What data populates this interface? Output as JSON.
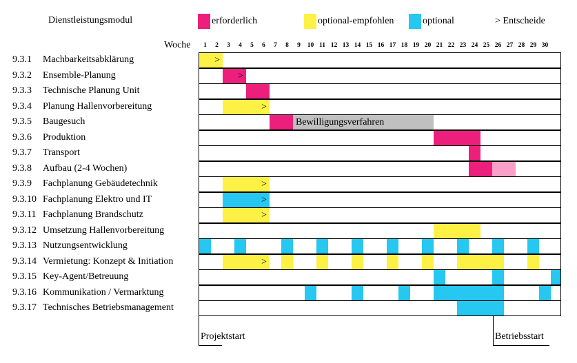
{
  "colors": {
    "required": "#ec1f7d",
    "recommended": "#fdf146",
    "optional": "#26c7f1",
    "permit": "#c0c0c0",
    "light_pink": "#f8a0c8"
  },
  "legend": {
    "title": "Dienstleistungsmodul",
    "required": "erforderlich",
    "recommended": "optional-empfohlen",
    "optional": "optional",
    "decision": "> Entscheide"
  },
  "axis": {
    "label": "Woche",
    "weeks": [
      "1",
      "2",
      "3",
      "4",
      "5",
      "6",
      "7",
      "8",
      "9",
      "10",
      "11",
      "12",
      "13",
      "14",
      "15",
      "16",
      "17",
      "18",
      "19",
      "20",
      "21",
      "22",
      "23",
      "24",
      "25",
      "26",
      "27",
      "28",
      "29",
      "30"
    ]
  },
  "tasks": [
    {
      "code": "9.3.1",
      "name": "Machbarkeitsabklärung"
    },
    {
      "code": "9.3.2",
      "name": "Ensemble-Planung"
    },
    {
      "code": "9.3.3",
      "name": "Technische Planung Unit"
    },
    {
      "code": "9.3.4",
      "name": "Planung Hallenvorbereitung"
    },
    {
      "code": "9.3.5",
      "name": "Baugesuch"
    },
    {
      "code": "9.3.6",
      "name": "Produktion"
    },
    {
      "code": "9.3.7",
      "name": "Transport"
    },
    {
      "code": "9.3.8",
      "name": "Aufbau (2-4 Wochen)"
    },
    {
      "code": "9.3.9",
      "name": "Fachplanung Gebäudetechnik"
    },
    {
      "code": "9.3.10",
      "name": "Fachplanung Elektro und IT"
    },
    {
      "code": "9.3.11",
      "name": "Fachplanung Brandschutz"
    },
    {
      "code": "9.3.12",
      "name": "Umsetzung Hallenvorbereitung"
    },
    {
      "code": "9.3.13",
      "name": "Nutzungsentwicklung"
    },
    {
      "code": "9.3.14",
      "name": "Vermietung: Konzept & Initiation"
    },
    {
      "code": "9.3.15",
      "name": "Key-Agent/Betreuung"
    },
    {
      "code": "9.3.16",
      "name": "Kommunikation / Vermarktung"
    },
    {
      "code": "9.3.17",
      "name": "Technisches Betriebsmanagement"
    }
  ],
  "bars": [
    {
      "row": 0,
      "start": 1,
      "end": 2,
      "type": "recommended",
      "decision": true
    },
    {
      "row": 1,
      "start": 3,
      "end": 4,
      "type": "required",
      "decision": true
    },
    {
      "row": 2,
      "start": 5,
      "end": 6,
      "type": "required"
    },
    {
      "row": 3,
      "start": 3,
      "end": 6,
      "type": "recommended",
      "decision": true
    },
    {
      "row": 4,
      "start": 7,
      "end": 8,
      "type": "required"
    },
    {
      "row": 4,
      "start": 9,
      "end": 20,
      "type": "permit",
      "label": "Bewilligungsverfahren"
    },
    {
      "row": 5,
      "start": 21,
      "end": 24,
      "type": "required"
    },
    {
      "row": 6,
      "start": 24,
      "end": 24,
      "type": "required"
    },
    {
      "row": 7,
      "start": 24,
      "end": 25,
      "type": "required"
    },
    {
      "row": 7,
      "start": 26,
      "end": 27,
      "type": "light_pink"
    },
    {
      "row": 8,
      "start": 3,
      "end": 6,
      "type": "recommended",
      "decision": true
    },
    {
      "row": 9,
      "start": 3,
      "end": 6,
      "type": "optional",
      "decision": true
    },
    {
      "row": 10,
      "start": 3,
      "end": 6,
      "type": "recommended",
      "decision": true
    },
    {
      "row": 11,
      "start": 21,
      "end": 24,
      "type": "recommended"
    },
    {
      "row": 12,
      "start": 1,
      "end": 1,
      "type": "optional"
    },
    {
      "row": 12,
      "start": 4,
      "end": 4,
      "type": "optional"
    },
    {
      "row": 12,
      "start": 8,
      "end": 8,
      "type": "optional"
    },
    {
      "row": 12,
      "start": 11,
      "end": 11,
      "type": "optional"
    },
    {
      "row": 12,
      "start": 14,
      "end": 14,
      "type": "optional"
    },
    {
      "row": 12,
      "start": 17,
      "end": 17,
      "type": "optional"
    },
    {
      "row": 12,
      "start": 20,
      "end": 20,
      "type": "optional"
    },
    {
      "row": 12,
      "start": 23,
      "end": 23,
      "type": "optional"
    },
    {
      "row": 12,
      "start": 26,
      "end": 26,
      "type": "optional"
    },
    {
      "row": 12,
      "start": 29,
      "end": 29,
      "type": "optional"
    },
    {
      "row": 13,
      "start": 3,
      "end": 6,
      "type": "recommended",
      "decision": true
    },
    {
      "row": 13,
      "start": 8,
      "end": 8,
      "type": "recommended"
    },
    {
      "row": 13,
      "start": 11,
      "end": 11,
      "type": "recommended"
    },
    {
      "row": 13,
      "start": 14,
      "end": 14,
      "type": "recommended"
    },
    {
      "row": 13,
      "start": 17,
      "end": 17,
      "type": "recommended"
    },
    {
      "row": 13,
      "start": 20,
      "end": 20,
      "type": "recommended"
    },
    {
      "row": 13,
      "start": 23,
      "end": 26,
      "type": "recommended"
    },
    {
      "row": 13,
      "start": 29,
      "end": 29,
      "type": "recommended"
    },
    {
      "row": 14,
      "start": 21,
      "end": 21,
      "type": "optional"
    },
    {
      "row": 14,
      "start": 26,
      "end": 26,
      "type": "optional"
    },
    {
      "row": 14,
      "start": 31,
      "end": 31,
      "type": "optional"
    },
    {
      "row": 15,
      "start": 10,
      "end": 10,
      "type": "optional"
    },
    {
      "row": 15,
      "start": 14,
      "end": 14,
      "type": "optional"
    },
    {
      "row": 15,
      "start": 18,
      "end": 18,
      "type": "optional"
    },
    {
      "row": 15,
      "start": 21,
      "end": 26,
      "type": "optional"
    },
    {
      "row": 15,
      "start": 30,
      "end": 30,
      "type": "optional"
    },
    {
      "row": 16,
      "start": 23,
      "end": 26,
      "type": "optional"
    }
  ],
  "milestones": [
    {
      "label": "Projektstart",
      "week": 1
    },
    {
      "label": "Betriebsstart",
      "week": 26
    }
  ]
}
